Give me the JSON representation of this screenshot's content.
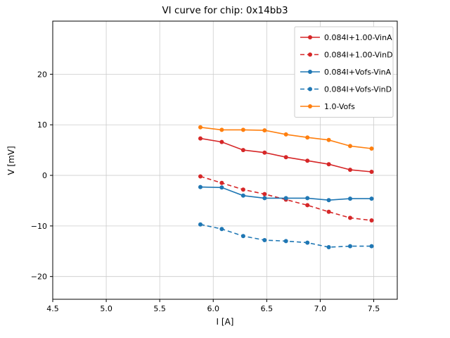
{
  "chart_data": {
    "type": "line",
    "title": "VI curve for chip: 0x14bb3",
    "xlabel": "I [A]",
    "ylabel": "V [mV]",
    "xlim": [
      4.5,
      7.72
    ],
    "ylim": [
      -24.5,
      30.5
    ],
    "grid": true,
    "legend_position": "upper right",
    "xtick_values": [
      4.5,
      5.0,
      5.5,
      6.0,
      6.5,
      7.0,
      7.5
    ],
    "xtick_labels": [
      "4.5",
      "5.0",
      "5.5",
      "6.0",
      "6.5",
      "7.0",
      "7.5"
    ],
    "ytick_values": [
      -20,
      -10,
      0,
      10,
      20
    ],
    "ytick_labels": [
      "−20",
      "−10",
      "0",
      "10",
      "20"
    ],
    "x": [
      5.88,
      6.08,
      6.28,
      6.48,
      6.68,
      6.88,
      7.08,
      7.28,
      7.48
    ],
    "series": [
      {
        "name": "0.084I+1.00-VinA",
        "color": "#d62728",
        "style": "solid",
        "marker": "circle",
        "values": [
          7.3,
          6.6,
          5.0,
          4.5,
          3.6,
          2.9,
          2.2,
          1.1,
          0.7
        ]
      },
      {
        "name": "0.084I+1.00-VinD",
        "color": "#d62728",
        "style": "dashed",
        "marker": "circle",
        "values": [
          -0.2,
          -1.5,
          -2.8,
          -3.7,
          -4.8,
          -5.9,
          -7.2,
          -8.4,
          -8.9
        ]
      },
      {
        "name": "0.084I+Vofs-VinA",
        "color": "#1f77b4",
        "style": "solid",
        "marker": "circle",
        "values": [
          -2.3,
          -2.4,
          -4.0,
          -4.5,
          -4.5,
          -4.5,
          -4.9,
          -4.6,
          -4.6
        ]
      },
      {
        "name": "0.084I+Vofs-VinD",
        "color": "#1f77b4",
        "style": "dashed",
        "marker": "circle",
        "values": [
          -9.7,
          -10.6,
          -12.0,
          -12.8,
          -13.0,
          -13.3,
          -14.2,
          -14.0,
          -14.0
        ]
      },
      {
        "name": "1.0-Vofs",
        "color": "#ff7f0e",
        "style": "solid",
        "marker": "circle",
        "values": [
          9.5,
          9.0,
          9.0,
          8.9,
          8.1,
          7.5,
          7.0,
          5.8,
          5.3
        ]
      }
    ],
    "colors": {
      "grid": "#cccccc",
      "frame": "#000000",
      "legend_border": "#cccccc",
      "background": "#ffffff"
    }
  }
}
